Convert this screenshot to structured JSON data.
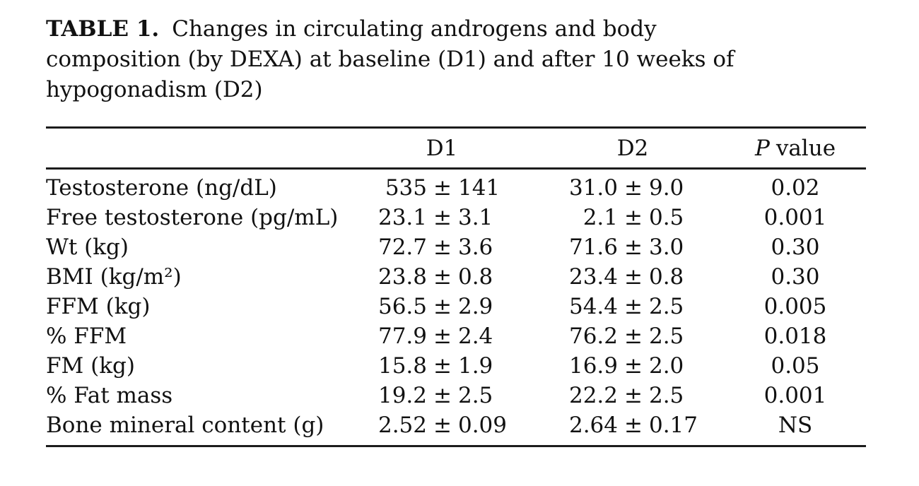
{
  "caption": {
    "label": "TABLE 1.",
    "lines": [
      "Changes in circulating androgens and body",
      "composition (by DEXA) at baseline (D1) and after 10 weeks of",
      "hypogonadism (D2)"
    ]
  },
  "table": {
    "pm": "±",
    "header": {
      "param": "",
      "d1": "D1",
      "d2": "D2",
      "p_italic": "P",
      "p_rest": "value"
    },
    "rows": [
      {
        "label": "Testosterone (ng/dL)",
        "d1_mean": "535",
        "d1_sd": "141",
        "d2_mean": "31.0",
        "d2_sd": "9.0",
        "p": "0.02"
      },
      {
        "label": "Free testosterone (pg/mL)",
        "d1_mean": "23.1",
        "d1_sd": "3.1",
        "d2_mean": "2.1",
        "d2_sd": "0.5",
        "p": "0.001"
      },
      {
        "label": "Wt (kg)",
        "d1_mean": "72.7",
        "d1_sd": "3.6",
        "d2_mean": "71.6",
        "d2_sd": "3.0",
        "p": "0.30"
      },
      {
        "label": "BMI (kg/m²)",
        "d1_mean": "23.8",
        "d1_sd": "0.8",
        "d2_mean": "23.4",
        "d2_sd": "0.8",
        "p": "0.30"
      },
      {
        "label": "FFM (kg)",
        "d1_mean": "56.5",
        "d1_sd": "2.9",
        "d2_mean": "54.4",
        "d2_sd": "2.5",
        "p": "0.005"
      },
      {
        "label": "% FFM",
        "d1_mean": "77.9",
        "d1_sd": "2.4",
        "d2_mean": "76.2",
        "d2_sd": "2.5",
        "p": "0.018"
      },
      {
        "label": "FM (kg)",
        "d1_mean": "15.8",
        "d1_sd": "1.9",
        "d2_mean": "16.9",
        "d2_sd": "2.0",
        "p": "0.05"
      },
      {
        "label": "% Fat mass",
        "d1_mean": "19.2",
        "d1_sd": "2.5",
        "d2_mean": "22.2",
        "d2_sd": "2.5",
        "p": "0.001"
      },
      {
        "label": "Bone mineral content (g)",
        "d1_mean": "2.52",
        "d1_sd": "0.09",
        "d2_mean": "2.64",
        "d2_sd": "0.17",
        "p": "NS"
      }
    ]
  },
  "colors": {
    "background": "#ffffff",
    "text": "#111111",
    "rule": "#1c1c1c"
  }
}
